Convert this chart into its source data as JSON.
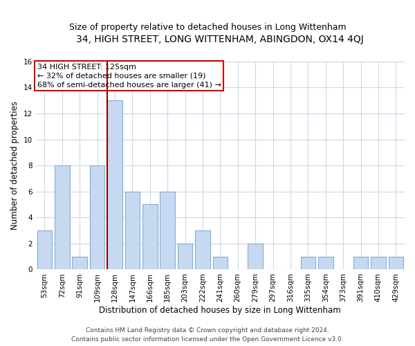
{
  "title": "34, HIGH STREET, LONG WITTENHAM, ABINGDON, OX14 4QJ",
  "subtitle": "Size of property relative to detached houses in Long Wittenham",
  "xlabel": "Distribution of detached houses by size in Long Wittenham",
  "ylabel": "Number of detached properties",
  "categories": [
    "53sqm",
    "72sqm",
    "91sqm",
    "109sqm",
    "128sqm",
    "147sqm",
    "166sqm",
    "185sqm",
    "203sqm",
    "222sqm",
    "241sqm",
    "260sqm",
    "279sqm",
    "297sqm",
    "316sqm",
    "335sqm",
    "354sqm",
    "373sqm",
    "391sqm",
    "410sqm",
    "429sqm"
  ],
  "values": [
    3,
    8,
    1,
    8,
    13,
    6,
    5,
    6,
    2,
    3,
    1,
    0,
    2,
    0,
    0,
    1,
    1,
    0,
    1,
    1,
    1
  ],
  "bar_color": "#c6d9f0",
  "bar_edge_color": "#7fafd4",
  "vline_color": "#8b0000",
  "annotation_line1": "34 HIGH STREET: 125sqm",
  "annotation_line2": "← 32% of detached houses are smaller (19)",
  "annotation_line3": "68% of semi-detached houses are larger (41) →",
  "annotation_box_color": "#ffffff",
  "annotation_box_edge_color": "#cc0000",
  "ylim": [
    0,
    16
  ],
  "yticks": [
    0,
    2,
    4,
    6,
    8,
    10,
    12,
    14,
    16
  ],
  "footer": "Contains HM Land Registry data © Crown copyright and database right 2024.\nContains public sector information licensed under the Open Government Licence v3.0.",
  "bg_color": "#ffffff",
  "grid_color": "#c8d8e8",
  "title_fontsize": 10,
  "subtitle_fontsize": 9,
  "axis_label_fontsize": 8.5,
  "tick_fontsize": 7.5,
  "annotation_fontsize": 8,
  "footer_fontsize": 6.5
}
